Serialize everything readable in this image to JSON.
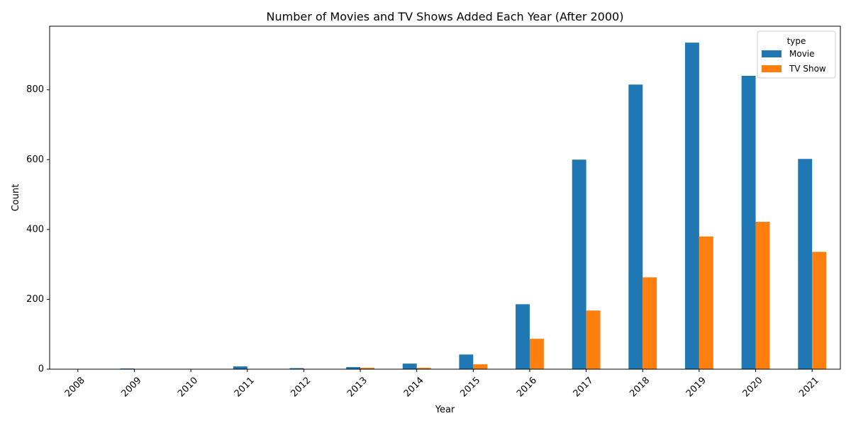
{
  "chart_data": {
    "type": "bar",
    "title": "Number of Movies and TV Shows Added Each Year (After 2000)",
    "xlabel": "Year",
    "ylabel": "Count",
    "categories": [
      "2008",
      "2009",
      "2010",
      "2011",
      "2012",
      "2013",
      "2014",
      "2015",
      "2016",
      "2017",
      "2018",
      "2019",
      "2020",
      "2021"
    ],
    "series": [
      {
        "name": "Movie",
        "color": "#1f77b4",
        "values": [
          1,
          2,
          1,
          8,
          3,
          6,
          16,
          42,
          186,
          600,
          815,
          935,
          840,
          602
        ]
      },
      {
        "name": "TV Show",
        "color": "#ff7f0e",
        "values": [
          1,
          0,
          0,
          0,
          0,
          4,
          4,
          14,
          87,
          168,
          263,
          380,
          422,
          336
        ]
      }
    ],
    "ylim": [
      0,
      982
    ],
    "yticks": [
      0,
      200,
      400,
      600,
      800
    ],
    "legend": {
      "title": "type",
      "placement": "top-right"
    },
    "grid": false
  }
}
